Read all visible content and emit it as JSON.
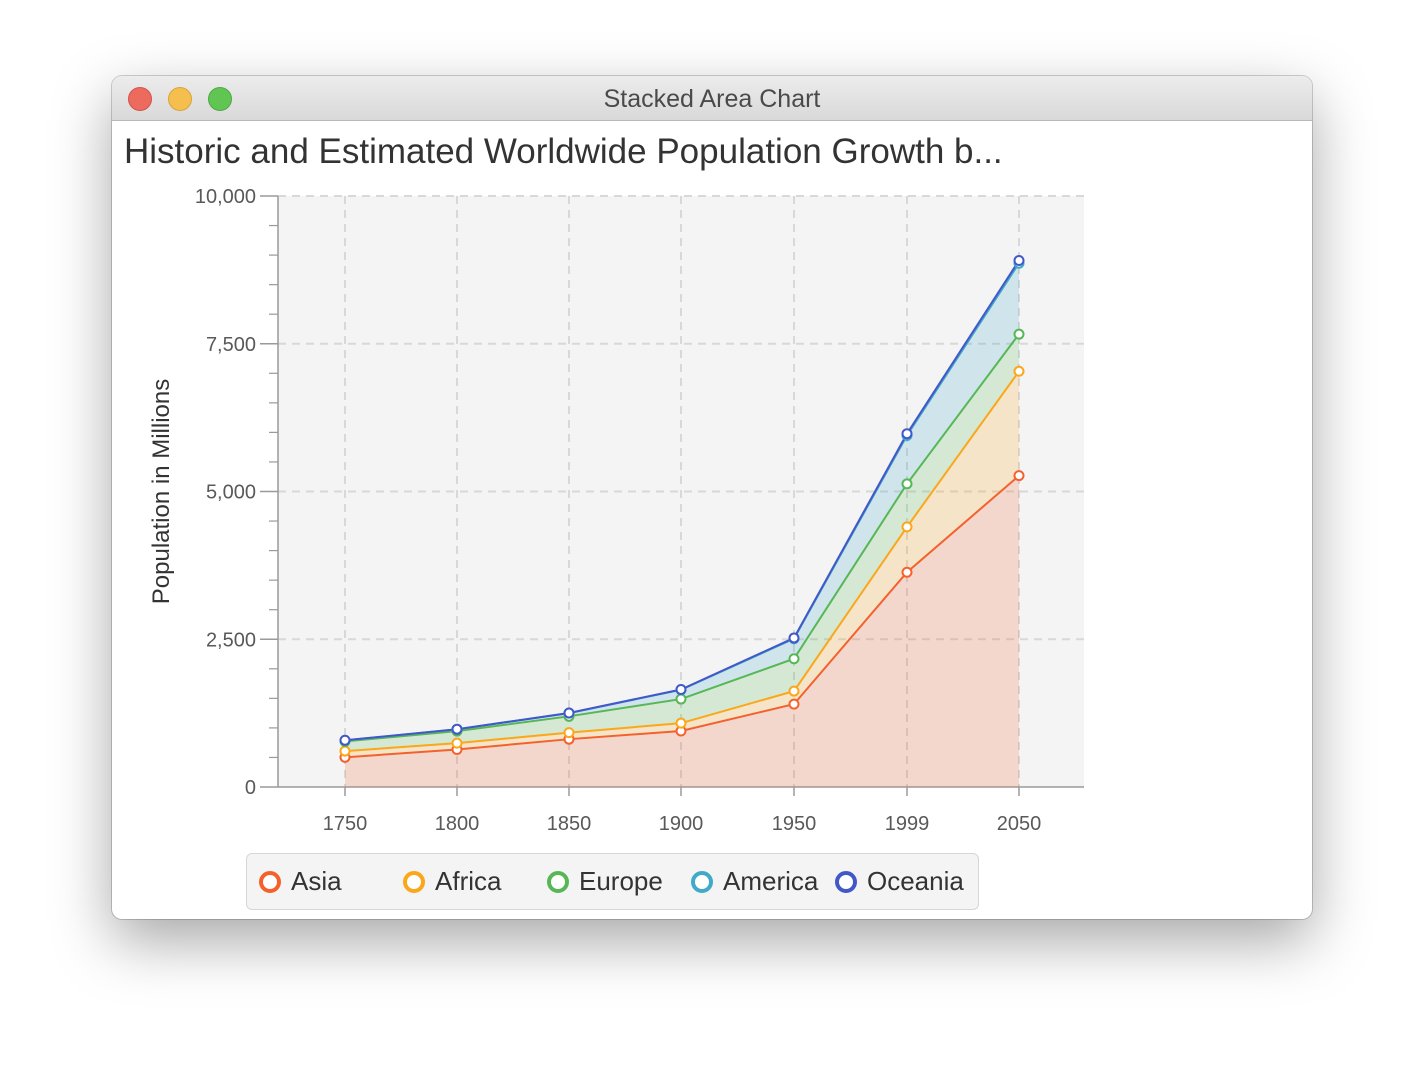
{
  "window": {
    "title": "Stacked Area Chart"
  },
  "chart_data": {
    "type": "area",
    "stacked": true,
    "title": "Historic and Estimated Worldwide Population Growth b...",
    "xlabel": "",
    "ylabel": "Population in Millions",
    "x": [
      "1750",
      "1800",
      "1850",
      "1900",
      "1950",
      "1999",
      "2050"
    ],
    "ylim": [
      0,
      10000
    ],
    "yticks": [
      "0",
      "2,500",
      "5,000",
      "7,500",
      "10,000"
    ],
    "grid": true,
    "legend_position": "bottom",
    "series": [
      {
        "name": "Asia",
        "color": "#f3622d",
        "values": [
          502,
          635,
          809,
          947,
          1402,
          3634,
          5268
        ]
      },
      {
        "name": "Africa",
        "color": "#fba71b",
        "values": [
          106,
          107,
          111,
          133,
          221,
          767,
          1766
        ]
      },
      {
        "name": "Europe",
        "color": "#57b757",
        "values": [
          163,
          203,
          276,
          408,
          547,
          729,
          628
        ]
      },
      {
        "name": "America",
        "color": "#41a9c9",
        "values": [
          18,
          31,
          54,
          156,
          339,
          818,
          1201
        ]
      },
      {
        "name": "Oceania",
        "color": "#4258c9",
        "values": [
          2,
          2,
          2,
          6,
          13,
          30,
          46
        ]
      }
    ]
  }
}
